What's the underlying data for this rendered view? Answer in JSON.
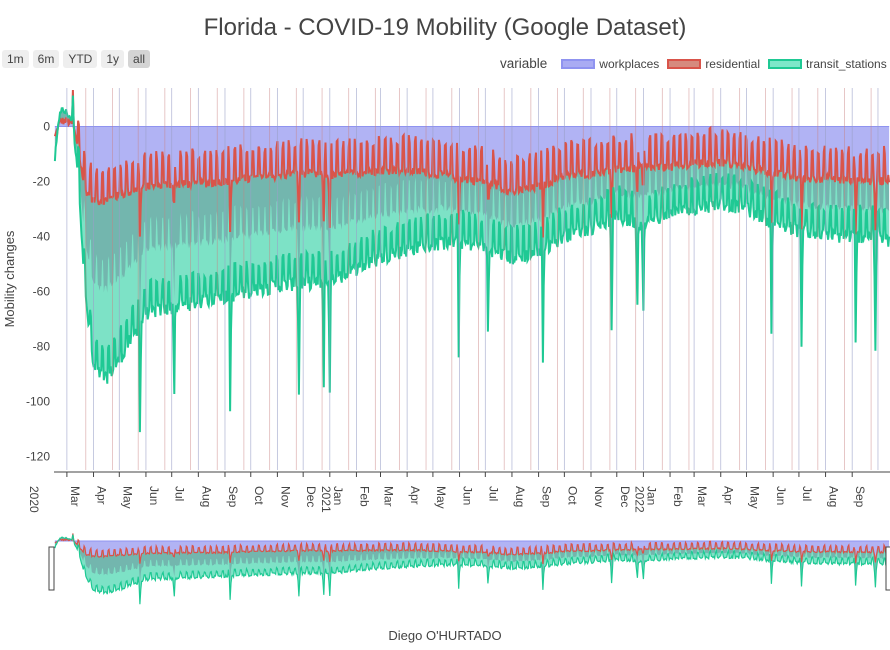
{
  "title": "Florida - COVID-19 Mobility (Google Dataset)",
  "range_buttons": [
    "1m",
    "6m",
    "YTD",
    "1y",
    "all"
  ],
  "active_range": "all",
  "legend": {
    "title": "variable",
    "items": [
      {
        "name": "workplaces",
        "fill": "#a9abf3",
        "line": "#8f93f0"
      },
      {
        "name": "residential",
        "fill": "#d68a7e",
        "line": "#d9544a"
      },
      {
        "name": "transit_stations",
        "fill": "#7ee7c9",
        "line": "#1fc994"
      }
    ]
  },
  "chart_data": {
    "type": "area",
    "title": "Florida - COVID-19 Mobility (Google Dataset)",
    "xlabel": "Diego O'HURTADO",
    "ylabel": "Mobility changes",
    "xlim": [
      "2020-02-15",
      "2022-10-15"
    ],
    "ylim": [
      -125,
      14
    ],
    "yticks": [
      0,
      -20,
      -40,
      -60,
      -80,
      -100,
      -120
    ],
    "xtick_labels": [
      "Feb",
      "Mar",
      "Apr",
      "May",
      "Jun",
      "Jul",
      "Aug",
      "Sep",
      "Oct",
      "Nov",
      "Dec",
      "Jan",
      "Feb",
      "Mar",
      "Apr",
      "May",
      "Jun",
      "Jul",
      "Aug",
      "Sep",
      "Oct",
      "Nov",
      "Dec",
      "Jan",
      "Feb",
      "Mar",
      "Apr",
      "May",
      "Jun",
      "Jul",
      "Aug",
      "Sep"
    ],
    "year_labels": [
      "2020",
      "2021",
      "2022"
    ],
    "grid": false,
    "legend_position": "top-right",
    "series": [
      {
        "name": "workplaces",
        "color": "#8f93f0",
        "x": [
          "2020-02-15",
          "2022-10-15"
        ],
        "values": [
          0,
          0
        ]
      },
      {
        "name": "residential",
        "color": "#d9544a",
        "x": [
          "2020-02-15",
          "2020-02-22",
          "2020-03-01",
          "2020-03-08",
          "2020-03-15",
          "2020-03-22",
          "2020-04-01",
          "2020-04-15",
          "2020-05-01",
          "2020-06-01",
          "2020-07-01",
          "2020-08-01",
          "2020-09-01",
          "2020-10-01",
          "2020-11-01",
          "2020-12-01",
          "2021-01-01",
          "2021-02-01",
          "2021-03-01",
          "2021-04-01",
          "2021-05-01",
          "2021-06-01",
          "2021-07-01",
          "2021-08-01",
          "2021-09-01",
          "2021-10-01",
          "2021-11-01",
          "2021-12-01",
          "2022-01-01",
          "2022-02-01",
          "2022-03-01",
          "2022-04-01",
          "2022-05-01",
          "2022-06-01",
          "2022-07-01",
          "2022-08-01",
          "2022-09-01",
          "2022-10-01",
          "2022-10-15"
        ],
        "values": [
          -5,
          2,
          2,
          1,
          -10,
          -23,
          -27,
          -27,
          -25,
          -22,
          -21,
          -21,
          -20,
          -19,
          -18,
          -17,
          -18,
          -17,
          -16,
          -16,
          -17,
          -19,
          -20,
          -24,
          -22,
          -18,
          -17,
          -16,
          -15,
          -15,
          -14,
          -13,
          -15,
          -17,
          -19,
          -19,
          -20,
          -20,
          -19
        ]
      },
      {
        "name": "transit_stations",
        "color": "#1fc994",
        "x": [
          "2020-02-15",
          "2020-02-22",
          "2020-03-01",
          "2020-03-08",
          "2020-03-15",
          "2020-03-22",
          "2020-04-01",
          "2020-04-15",
          "2020-05-01",
          "2020-06-01",
          "2020-07-01",
          "2020-08-01",
          "2020-09-01",
          "2020-10-01",
          "2020-11-01",
          "2020-12-01",
          "2021-01-01",
          "2021-02-01",
          "2021-03-01",
          "2021-04-01",
          "2021-05-01",
          "2021-06-01",
          "2021-07-01",
          "2021-08-01",
          "2021-09-01",
          "2021-10-01",
          "2021-11-01",
          "2021-12-01",
          "2022-01-01",
          "2022-02-01",
          "2022-03-01",
          "2022-04-01",
          "2022-05-01",
          "2022-06-01",
          "2022-07-01",
          "2022-08-01",
          "2022-09-01",
          "2022-10-01",
          "2022-10-15"
        ],
        "values": [
          -15,
          6,
          5,
          2,
          -20,
          -60,
          -88,
          -92,
          -85,
          -68,
          -66,
          -64,
          -62,
          -60,
          -58,
          -57,
          -57,
          -52,
          -48,
          -45,
          -43,
          -42,
          -44,
          -48,
          -46,
          -40,
          -37,
          -33,
          -36,
          -32,
          -30,
          -28,
          -30,
          -35,
          -38,
          -40,
          -40,
          -40,
          -42
        ]
      }
    ]
  },
  "rangeslider": {
    "visible": true
  },
  "credit": "Diego O'HURTADO"
}
